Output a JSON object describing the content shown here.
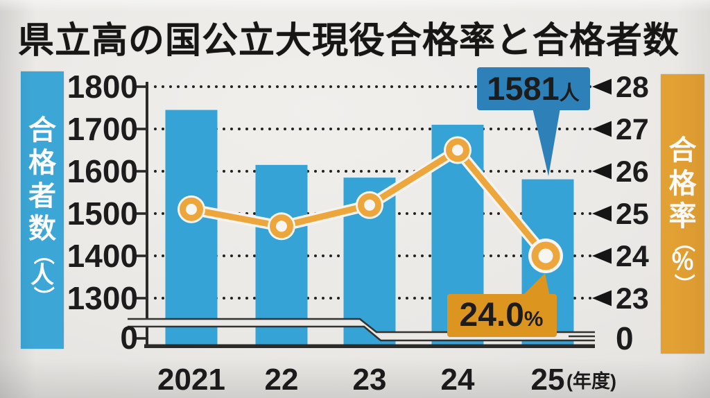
{
  "title": "県立高の国公立大現役合格率と合格者数",
  "left_axis": {
    "unit_label": "合格者数（人）",
    "ticks": [
      "1800",
      "1700",
      "1600",
      "1500",
      "1400",
      "1300"
    ],
    "zero_label": "0"
  },
  "right_axis": {
    "unit_label": "合格率（％）",
    "ticks": [
      "28",
      "27",
      "26",
      "25",
      "24",
      "23"
    ],
    "zero_label": "0"
  },
  "x_axis": {
    "labels": [
      "2021",
      "22",
      "23",
      "24",
      "25"
    ],
    "suffix": "(年度)"
  },
  "chart_data": {
    "type": "bar+line combo",
    "categories": [
      "2021",
      "22",
      "23",
      "24",
      "25"
    ],
    "series": [
      {
        "name": "合格者数（人）",
        "type": "bar",
        "axis": "left",
        "values": [
          1745,
          1615,
          1585,
          1710,
          1581
        ]
      },
      {
        "name": "合格率（％）",
        "type": "line",
        "axis": "right",
        "values": [
          25.1,
          24.7,
          25.2,
          26.5,
          24.0
        ]
      }
    ],
    "title": "県立高の国公立大現役合格率と合格者数",
    "left_ylabel": "合格者数（人）",
    "right_ylabel": "合格率（％）",
    "left_ylim": [
      1300,
      1800
    ],
    "right_ylim": [
      23,
      28
    ],
    "axis_break_to_zero": true,
    "grid": "dotted horizontal",
    "annotations": [
      {
        "series": "合格者数",
        "category": "25",
        "value": "1581",
        "unit": "人"
      },
      {
        "series": "合格率",
        "category": "25",
        "value": "24.0",
        "unit": "%"
      }
    ]
  },
  "colors": {
    "bar_blue": "#35a3d6",
    "label_bar_blue": "#3ca7d7",
    "callout_blue": "#2e80b8",
    "line_orange": "#eda63c",
    "label_bar_orange": "#e3a033",
    "callout_orange": "#dc961f",
    "ink": "#1c1c1c",
    "paper": "#ebe9e6"
  }
}
